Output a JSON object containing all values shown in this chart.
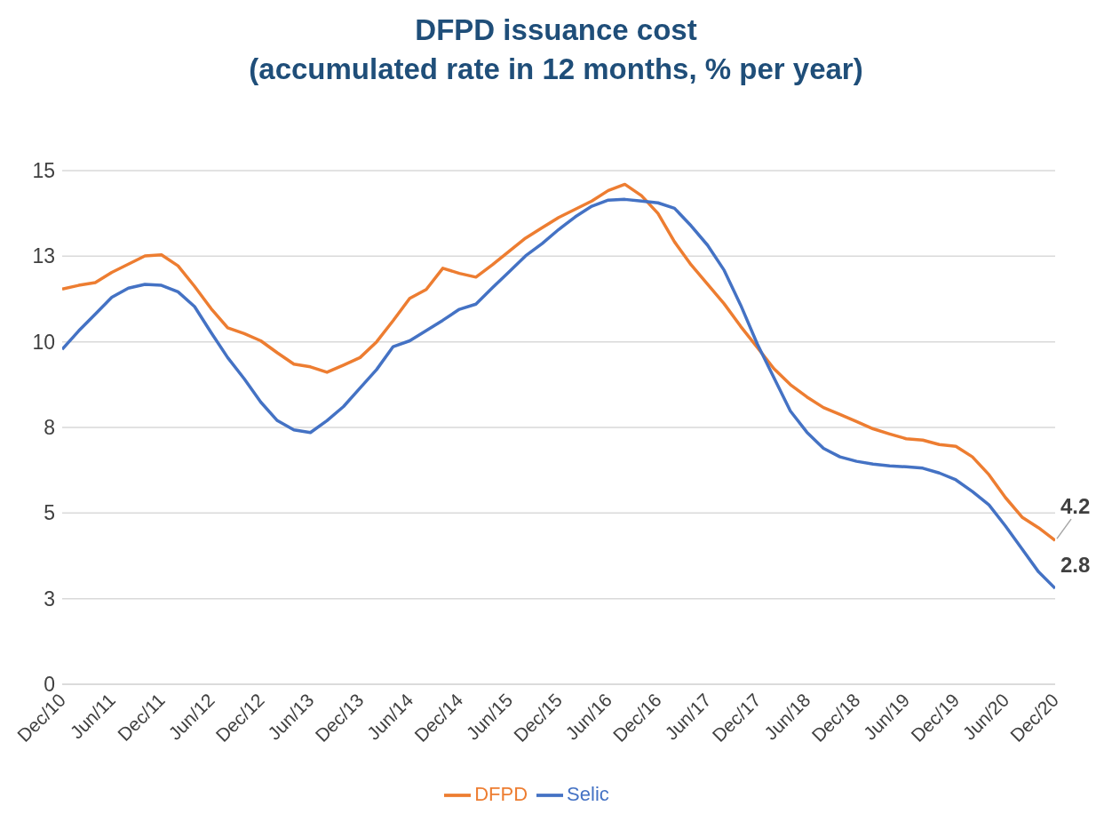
{
  "chart_data": {
    "type": "line",
    "title": "DFPD issuance cost",
    "subtitle": "(accumulated rate in 12 months, % per year)",
    "x": [
      "2010-12",
      "2011-02",
      "2011-04",
      "2011-06",
      "2011-08",
      "2011-10",
      "2011-12",
      "2012-02",
      "2012-04",
      "2012-06",
      "2012-08",
      "2012-10",
      "2012-12",
      "2013-02",
      "2013-04",
      "2013-06",
      "2013-08",
      "2013-10",
      "2013-12",
      "2014-02",
      "2014-04",
      "2014-06",
      "2014-08",
      "2014-10",
      "2014-12",
      "2015-02",
      "2015-04",
      "2015-06",
      "2015-08",
      "2015-10",
      "2015-12",
      "2016-02",
      "2016-04",
      "2016-06",
      "2016-08",
      "2016-10",
      "2016-12",
      "2017-02",
      "2017-04",
      "2017-06",
      "2017-08",
      "2017-10",
      "2017-12",
      "2018-02",
      "2018-04",
      "2018-06",
      "2018-08",
      "2018-10",
      "2018-12",
      "2019-02",
      "2019-04",
      "2019-06",
      "2019-08",
      "2019-10",
      "2019-12",
      "2020-02",
      "2020-04",
      "2020-06",
      "2020-08",
      "2020-10",
      "2020-12"
    ],
    "series": [
      {
        "name": "DFPD",
        "color": "#ed7d31",
        "values": [
          11.54,
          11.65,
          11.73,
          12.03,
          12.27,
          12.51,
          12.54,
          12.22,
          11.62,
          10.97,
          10.41,
          10.24,
          10.03,
          9.68,
          9.35,
          9.27,
          9.11,
          9.32,
          9.54,
          10.0,
          10.62,
          11.27,
          11.53,
          12.15,
          12.0,
          11.89,
          12.25,
          12.64,
          13.03,
          13.33,
          13.63,
          13.87,
          14.11,
          14.42,
          14.6,
          14.27,
          13.75,
          12.92,
          12.25,
          11.68,
          11.11,
          10.45,
          9.84,
          9.22,
          8.75,
          8.39,
          8.08,
          7.88,
          7.67,
          7.46,
          7.31,
          7.17,
          7.13,
          7.0,
          6.95,
          6.64,
          6.12,
          5.45,
          4.88,
          4.57,
          4.2
        ]
      },
      {
        "name": "Selic",
        "color": "#4472c4",
        "values": [
          9.78,
          10.32,
          10.81,
          11.3,
          11.57,
          11.68,
          11.65,
          11.46,
          11.03,
          10.27,
          9.54,
          8.92,
          8.24,
          7.7,
          7.43,
          7.35,
          7.7,
          8.11,
          8.65,
          9.19,
          9.86,
          10.03,
          10.33,
          10.63,
          10.95,
          11.1,
          11.58,
          12.04,
          12.51,
          12.87,
          13.28,
          13.65,
          13.96,
          14.14,
          14.16,
          14.11,
          14.06,
          13.9,
          13.39,
          12.82,
          12.09,
          11.07,
          9.94,
          8.96,
          7.98,
          7.36,
          6.89,
          6.64,
          6.51,
          6.43,
          6.38,
          6.35,
          6.31,
          6.17,
          5.97,
          5.63,
          5.24,
          4.62,
          3.95,
          3.28,
          2.8
        ]
      }
    ],
    "xlim": [
      "2010-12",
      "2020-12"
    ],
    "xticks": [
      {
        "value": "2010-12",
        "label": "Dec/10"
      },
      {
        "value": "2011-06",
        "label": "Jun/11"
      },
      {
        "value": "2011-12",
        "label": "Dec/11"
      },
      {
        "value": "2012-06",
        "label": "Jun/12"
      },
      {
        "value": "2012-12",
        "label": "Dec/12"
      },
      {
        "value": "2013-06",
        "label": "Jun/13"
      },
      {
        "value": "2013-12",
        "label": "Dec/13"
      },
      {
        "value": "2014-06",
        "label": "Jun/14"
      },
      {
        "value": "2014-12",
        "label": "Dec/14"
      },
      {
        "value": "2015-06",
        "label": "Jun/15"
      },
      {
        "value": "2015-12",
        "label": "Dec/15"
      },
      {
        "value": "2016-06",
        "label": "Jun/16"
      },
      {
        "value": "2016-12",
        "label": "Dec/16"
      },
      {
        "value": "2017-06",
        "label": "Jun/17"
      },
      {
        "value": "2017-12",
        "label": "Dec/17"
      },
      {
        "value": "2018-06",
        "label": "Jun/18"
      },
      {
        "value": "2018-12",
        "label": "Dec/18"
      },
      {
        "value": "2019-06",
        "label": "Jun/19"
      },
      {
        "value": "2019-12",
        "label": "Dec/19"
      },
      {
        "value": "2020-06",
        "label": "Jun/20"
      },
      {
        "value": "2020-12",
        "label": "Dec/20"
      }
    ],
    "ylim": [
      0,
      15
    ],
    "yticks": [
      0,
      {
        "value": 2.5,
        "label": "3"
      },
      5,
      {
        "value": 7.5,
        "label": "8"
      },
      10,
      {
        "value": 12.5,
        "label": "13"
      },
      15
    ],
    "annotations": [
      {
        "text": "4.2",
        "x": "2020-12",
        "y": 4.2
      },
      {
        "text": "2.8",
        "x": "2020-12",
        "y": 2.8
      }
    ],
    "grid": "y",
    "legend": "bottom",
    "marker": "none",
    "line_style": "solid"
  }
}
